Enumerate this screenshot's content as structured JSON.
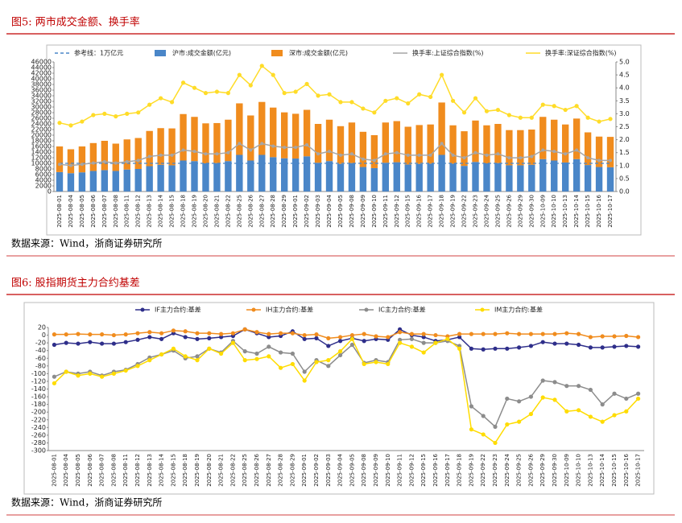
{
  "figures": [
    {
      "heading": "图5:  两市成交金额、换手率",
      "source": "数据来源：Wind，浙商证券研究所"
    },
    {
      "heading": "图6:  股指期货主力合约基差",
      "source": "数据来源：Wind，浙商证券研究所"
    }
  ],
  "chart_data": [
    {
      "type": "combo",
      "grid": false,
      "categories": [
        "2025-08-01",
        "2025-08-04",
        "2025-08-05",
        "2025-08-06",
        "2025-08-07",
        "2025-08-08",
        "2025-08-11",
        "2025-08-12",
        "2025-08-13",
        "2025-08-14",
        "2025-08-15",
        "2025-08-18",
        "2025-08-19",
        "2025-08-20",
        "2025-08-21",
        "2025-08-22",
        "2025-08-25",
        "2025-08-26",
        "2025-08-27",
        "2025-08-28",
        "2025-08-29",
        "2025-09-01",
        "2025-09-02",
        "2025-09-03",
        "2025-09-04",
        "2025-09-05",
        "2025-09-08",
        "2025-09-09",
        "2025-09-10",
        "2025-09-11",
        "2025-09-12",
        "2025-09-15",
        "2025-09-16",
        "2025-09-17",
        "2025-09-18",
        "2025-09-19",
        "2025-09-22",
        "2025-09-23",
        "2025-09-24",
        "2025-09-25",
        "2025-09-26",
        "2025-09-29",
        "2025-09-30",
        "2025-10-09",
        "2025-10-10",
        "2025-10-13",
        "2025-10-14",
        "2025-10-15",
        "2025-10-16",
        "2025-10-17"
      ],
      "ylim": [
        0,
        46000
      ],
      "yticks": [
        0,
        2000,
        4000,
        6000,
        8000,
        10000,
        12000,
        14000,
        16000,
        18000,
        20000,
        22000,
        24000,
        26000,
        28000,
        30000,
        32000,
        34000,
        36000,
        38000,
        40000,
        42000,
        44000,
        46000
      ],
      "y2lim": [
        0,
        5
      ],
      "y2ticks": [
        {
          "value": 0,
          "label": "0.0"
        },
        {
          "value": 0.5,
          "label": "0.5"
        },
        {
          "value": 1,
          "label": "1.0"
        },
        {
          "value": 1.5,
          "label": "1.5"
        },
        {
          "value": 2,
          "label": "2.0"
        },
        {
          "value": 2.5,
          "label": "2.5"
        },
        {
          "value": 3,
          "label": "3.0"
        },
        {
          "value": 3.5,
          "label": "3.5"
        },
        {
          "value": 4,
          "label": "4.0"
        },
        {
          "value": 4.5,
          "label": "4.5"
        },
        {
          "value": 5,
          "label": "5.0"
        }
      ],
      "series": [
        {
          "name": "参考线：1万亿元",
          "type": "line",
          "dashed": true,
          "color": "#4a86c8",
          "values": [
            10000,
            10000,
            10000,
            10000,
            10000,
            10000,
            10000,
            10000,
            10000,
            10000,
            10000,
            10000,
            10000,
            10000,
            10000,
            10000,
            10000,
            10000,
            10000,
            10000,
            10000,
            10000,
            10000,
            10000,
            10000,
            10000,
            10000,
            10000,
            10000,
            10000,
            10000,
            10000,
            10000,
            10000,
            10000,
            10000,
            10000,
            10000,
            10000,
            10000,
            10000,
            10000,
            10000,
            10000,
            10000,
            10000,
            10000,
            10000,
            10000,
            10000
          ]
        },
        {
          "name": "沪市:成交金额(亿元)",
          "type": "bar",
          "color": "#4a86c8",
          "values": [
            6900,
            6500,
            6800,
            7300,
            7600,
            7300,
            7800,
            8000,
            9000,
            9500,
            9300,
            11000,
            10800,
            10000,
            10100,
            10800,
            13000,
            11000,
            13000,
            12200,
            11800,
            11700,
            12500,
            10200,
            10800,
            9800,
            10100,
            8700,
            8300,
            10200,
            10400,
            9600,
            9800,
            9900,
            13000,
            9900,
            9100,
            10500,
            10000,
            10100,
            9300,
            9300,
            9500,
            11500,
            11000,
            10300,
            11500,
            9400,
            8700,
            8600
          ]
        },
        {
          "name": "深市:成交金额(亿元)",
          "type": "bar",
          "color": "#f08c1e",
          "values": [
            9100,
            8500,
            9200,
            9900,
            10400,
            9700,
            10700,
            11000,
            12500,
            13000,
            13100,
            16500,
            15700,
            14200,
            14200,
            14700,
            18300,
            16000,
            18800,
            17600,
            16300,
            15900,
            16500,
            13800,
            14700,
            13400,
            14400,
            12500,
            11700,
            14300,
            14600,
            13400,
            13800,
            13900,
            18600,
            13600,
            12300,
            14700,
            13500,
            13900,
            12500,
            12500,
            12500,
            15000,
            14500,
            13500,
            14400,
            11600,
            10800,
            10800
          ]
        },
        {
          "name": "换手率:上证综合指数(%)",
          "type": "line",
          "axis": "y2",
          "marker": true,
          "color": "#a6a6a6",
          "values": [
            1.05,
            1.0,
            1.05,
            1.1,
            1.15,
            1.1,
            1.15,
            1.2,
            1.35,
            1.4,
            1.4,
            1.6,
            1.55,
            1.45,
            1.45,
            1.5,
            1.85,
            1.6,
            1.85,
            1.75,
            1.7,
            1.7,
            1.8,
            1.45,
            1.55,
            1.4,
            1.45,
            1.25,
            1.2,
            1.45,
            1.5,
            1.4,
            1.4,
            1.4,
            1.85,
            1.4,
            1.3,
            1.5,
            1.4,
            1.45,
            1.3,
            1.3,
            1.35,
            1.6,
            1.55,
            1.45,
            1.6,
            1.3,
            1.2,
            1.2
          ]
        },
        {
          "name": "换手率:深证综合指数(%)",
          "type": "line",
          "axis": "y2",
          "marker": true,
          "color": "#ffdc28",
          "values": [
            2.65,
            2.55,
            2.7,
            2.95,
            3.0,
            2.9,
            3.0,
            3.05,
            3.35,
            3.6,
            3.45,
            4.2,
            4.0,
            3.8,
            3.85,
            3.8,
            4.5,
            4.1,
            4.85,
            4.5,
            3.8,
            3.85,
            4.15,
            3.7,
            3.75,
            3.45,
            3.45,
            3.2,
            3.05,
            3.5,
            3.6,
            3.4,
            3.75,
            3.65,
            4.5,
            3.5,
            3.05,
            3.6,
            3.1,
            3.15,
            2.95,
            2.85,
            2.85,
            3.35,
            3.3,
            3.15,
            3.3,
            2.85,
            2.7,
            2.8
          ]
        }
      ]
    },
    {
      "type": "line",
      "grid": false,
      "categories": [
        "2025-08-01",
        "2025-08-04",
        "2025-08-05",
        "2025-08-06",
        "2025-08-07",
        "2025-08-08",
        "2025-08-11",
        "2025-08-12",
        "2025-08-13",
        "2025-08-14",
        "2025-08-15",
        "2025-08-18",
        "2025-08-19",
        "2025-08-20",
        "2025-08-21",
        "2025-08-22",
        "2025-08-25",
        "2025-08-26",
        "2025-08-27",
        "2025-08-28",
        "2025-08-29",
        "2025-09-01",
        "2025-09-02",
        "2025-09-03",
        "2025-09-04",
        "2025-09-05",
        "2025-09-08",
        "2025-09-09",
        "2025-09-10",
        "2025-09-11",
        "2025-09-12",
        "2025-09-15",
        "2025-09-16",
        "2025-09-17",
        "2025-09-18",
        "2025-09-19",
        "2025-09-22",
        "2025-09-23",
        "2025-09-24",
        "2025-09-25",
        "2025-09-26",
        "2025-09-29",
        "2025-09-30",
        "2025-10-09",
        "2025-10-10",
        "2025-10-13",
        "2025-10-14",
        "2025-10-15",
        "2025-10-16",
        "2025-10-17"
      ],
      "ylim": [
        -300,
        20
      ],
      "yticks": [
        20,
        0,
        -20,
        -40,
        -60,
        -80,
        -100,
        -120,
        -140,
        -160,
        -180,
        -200,
        -220,
        -240,
        -260,
        -280,
        -300
      ],
      "series": [
        {
          "name": "IF主力合约:基差",
          "type": "line",
          "marker": true,
          "color": "#2e2e8a",
          "values": [
            -25,
            -20,
            -22,
            -18,
            -22,
            -22,
            -18,
            -12,
            -5,
            -10,
            5,
            -5,
            -10,
            -8,
            -5,
            -2,
            15,
            5,
            -5,
            -2,
            10,
            -10,
            -8,
            -28,
            -15,
            -8,
            -15,
            -10,
            -12,
            15,
            0,
            -5,
            -15,
            -12,
            -5,
            -35,
            -37,
            -35,
            -35,
            -32,
            -28,
            -18,
            -22,
            -22,
            -25,
            -32,
            -32,
            -30,
            -28,
            -30
          ]
        },
        {
          "name": "IH主力合约:基差",
          "type": "line",
          "marker": true,
          "color": "#f08c1e",
          "values": [
            2,
            2,
            3,
            2,
            2,
            0,
            2,
            5,
            8,
            5,
            12,
            10,
            5,
            5,
            3,
            5,
            15,
            8,
            3,
            5,
            5,
            0,
            2,
            -8,
            -5,
            0,
            3,
            -3,
            -5,
            8,
            3,
            3,
            0,
            -3,
            3,
            3,
            3,
            3,
            5,
            3,
            3,
            3,
            3,
            5,
            3,
            -5,
            -3,
            -3,
            -2,
            -5
          ]
        },
        {
          "name": "IC主力合约:基差",
          "type": "line",
          "marker": true,
          "color": "#8c8c8c",
          "values": [
            -108,
            -95,
            -100,
            -95,
            -105,
            -95,
            -90,
            -75,
            -58,
            -50,
            -40,
            -60,
            -55,
            -35,
            -45,
            -15,
            -42,
            -48,
            -30,
            -45,
            -48,
            -95,
            -65,
            -80,
            -52,
            -25,
            -72,
            -65,
            -70,
            -12,
            -10,
            -20,
            -20,
            -15,
            -28,
            -185,
            -210,
            -238,
            -165,
            -172,
            -160,
            -118,
            -122,
            -132,
            -132,
            -142,
            -180,
            -152,
            -165,
            -152
          ]
        },
        {
          "name": "IM主力合约:基差",
          "type": "line",
          "marker": true,
          "color": "#ffdc00",
          "values": [
            -125,
            -95,
            -105,
            -100,
            -108,
            -100,
            -92,
            -80,
            -65,
            -50,
            -35,
            -55,
            -65,
            -35,
            -48,
            -20,
            -65,
            -62,
            -55,
            -85,
            -75,
            -118,
            -70,
            -65,
            -42,
            -10,
            -75,
            -70,
            -75,
            -20,
            -30,
            -45,
            -20,
            -10,
            -35,
            -245,
            -258,
            -280,
            -232,
            -225,
            -205,
            -162,
            -168,
            -198,
            -195,
            -212,
            -225,
            -208,
            -198,
            -165
          ]
        }
      ]
    }
  ]
}
